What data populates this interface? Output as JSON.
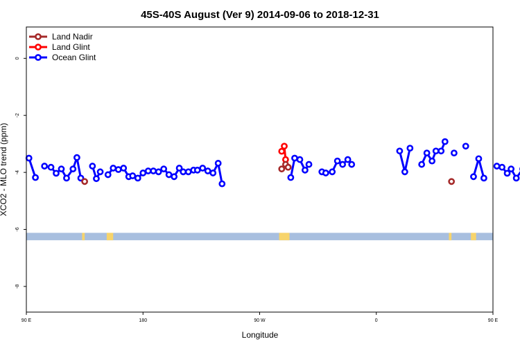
{
  "chart_data": {
    "type": "line",
    "title": "45S-40S August (Ver 9)   2014-09-06 to 2018-12-31",
    "xlabel": "Longitude",
    "ylabel": "XCO2 - MLO trend (ppm)",
    "xlim": [
      90,
      450
    ],
    "ylim": [
      -8.9,
      1.1
    ],
    "x_ticks": [
      {
        "value": 90,
        "label": "90 E"
      },
      {
        "value": 180,
        "label": "180"
      },
      {
        "value": 270,
        "label": "90 W"
      },
      {
        "value": 360,
        "label": "0"
      },
      {
        "value": 450,
        "label": "90 E"
      },
      {
        "value": 540,
        "label": "180"
      }
    ],
    "y_ticks": [
      {
        "value": 0,
        "label": "0"
      },
      {
        "value": -2,
        "label": "-2"
      },
      {
        "value": -4,
        "label": "-4"
      },
      {
        "value": -6,
        "label": "-6"
      },
      {
        "value": -8,
        "label": "-8"
      }
    ],
    "legend_position": "top-left",
    "grid": false,
    "surface_band": {
      "y_top": -6.12,
      "y_bottom": -6.38,
      "ocean_color": "#a8bfdf",
      "land_color": "#f7d46b",
      "land_segments": [
        [
          133,
          135
        ],
        [
          152,
          157
        ],
        [
          285,
          293
        ],
        [
          416,
          418
        ],
        [
          433,
          437
        ]
      ]
    },
    "series": [
      {
        "name": "Land Nadir",
        "color": "#a52a2a",
        "segments": [
          [
            {
              "x": 135,
              "y": -4.32
            }
          ],
          [
            {
              "x": 287,
              "y": -3.88
            }
          ],
          [
            {
              "x": 290,
              "y": -3.72
            }
          ],
          [
            {
              "x": 292,
              "y": -3.82
            }
          ],
          [
            {
              "x": 418,
              "y": -4.32
            }
          ]
        ]
      },
      {
        "name": "Land Glint",
        "color": "#ff0000",
        "segments": [
          [
            {
              "x": 287,
              "y": -3.26
            },
            {
              "x": 289,
              "y": -3.08
            },
            {
              "x": 290,
              "y": -3.55
            },
            {
              "x": 292,
              "y": -3.82
            }
          ]
        ]
      },
      {
        "name": "Ocean Glint",
        "color": "#0000ff",
        "segments": [
          [
            {
              "x": 92,
              "y": -3.5
            },
            {
              "x": 97,
              "y": -4.18
            }
          ],
          [
            {
              "x": 104,
              "y": -3.78
            },
            {
              "x": 109,
              "y": -3.82
            },
            {
              "x": 113,
              "y": -4.03
            },
            {
              "x": 117,
              "y": -3.88
            },
            {
              "x": 121,
              "y": -4.2
            },
            {
              "x": 126,
              "y": -3.88
            },
            {
              "x": 129,
              "y": -3.48
            },
            {
              "x": 132,
              "y": -4.2
            }
          ],
          [
            {
              "x": 141,
              "y": -3.78
            },
            {
              "x": 144,
              "y": -4.22
            },
            {
              "x": 147,
              "y": -3.98
            }
          ],
          [
            {
              "x": 153,
              "y": -4.08
            },
            {
              "x": 157,
              "y": -3.85
            },
            {
              "x": 161,
              "y": -3.9
            },
            {
              "x": 165,
              "y": -3.85
            },
            {
              "x": 169,
              "y": -4.15
            },
            {
              "x": 172,
              "y": -4.12
            },
            {
              "x": 176,
              "y": -4.2
            },
            {
              "x": 180,
              "y": -4.02
            },
            {
              "x": 184,
              "y": -3.95
            },
            {
              "x": 188,
              "y": -3.95
            },
            {
              "x": 192,
              "y": -3.98
            },
            {
              "x": 196,
              "y": -3.88
            },
            {
              "x": 200,
              "y": -4.08
            },
            {
              "x": 204,
              "y": -4.15
            },
            {
              "x": 208,
              "y": -3.85
            },
            {
              "x": 211,
              "y": -3.98
            },
            {
              "x": 215,
              "y": -3.98
            },
            {
              "x": 219,
              "y": -3.92
            },
            {
              "x": 222,
              "y": -3.92
            },
            {
              "x": 226,
              "y": -3.85
            },
            {
              "x": 230,
              "y": -3.95
            },
            {
              "x": 234,
              "y": -4.02
            },
            {
              "x": 238,
              "y": -3.68
            },
            {
              "x": 241,
              "y": -4.4
            }
          ],
          [
            {
              "x": 294,
              "y": -4.18
            },
            {
              "x": 297,
              "y": -3.5
            },
            {
              "x": 301,
              "y": -3.55
            },
            {
              "x": 305,
              "y": -3.92
            },
            {
              "x": 308,
              "y": -3.72
            }
          ],
          [
            {
              "x": 318,
              "y": -3.98
            },
            {
              "x": 321,
              "y": -4.02
            },
            {
              "x": 326,
              "y": -3.98
            },
            {
              "x": 330,
              "y": -3.6
            },
            {
              "x": 334,
              "y": -3.72
            },
            {
              "x": 338,
              "y": -3.55
            },
            {
              "x": 341,
              "y": -3.72
            }
          ],
          [
            {
              "x": 378,
              "y": -3.25
            },
            {
              "x": 382,
              "y": -3.98
            },
            {
              "x": 386,
              "y": -3.15
            }
          ],
          [
            {
              "x": 395,
              "y": -3.72
            },
            {
              "x": 399,
              "y": -3.32
            },
            {
              "x": 403,
              "y": -3.6
            },
            {
              "x": 406,
              "y": -3.25
            },
            {
              "x": 410,
              "y": -3.25
            },
            {
              "x": 413,
              "y": -2.92
            }
          ],
          [
            {
              "x": 420,
              "y": -3.32
            }
          ],
          [
            {
              "x": 429,
              "y": -3.08
            }
          ],
          [
            {
              "x": 435,
              "y": -4.15
            },
            {
              "x": 439,
              "y": -3.52
            },
            {
              "x": 443,
              "y": -4.2
            }
          ],
          [
            {
              "x": 453,
              "y": -3.78
            },
            {
              "x": 457,
              "y": -3.82
            },
            {
              "x": 461,
              "y": -4.03
            },
            {
              "x": 464,
              "y": -3.88
            },
            {
              "x": 468,
              "y": -4.2
            },
            {
              "x": 473,
              "y": -3.88
            },
            {
              "x": 476,
              "y": -3.48
            },
            {
              "x": 479,
              "y": -4.2
            }
          ]
        ]
      }
    ]
  }
}
